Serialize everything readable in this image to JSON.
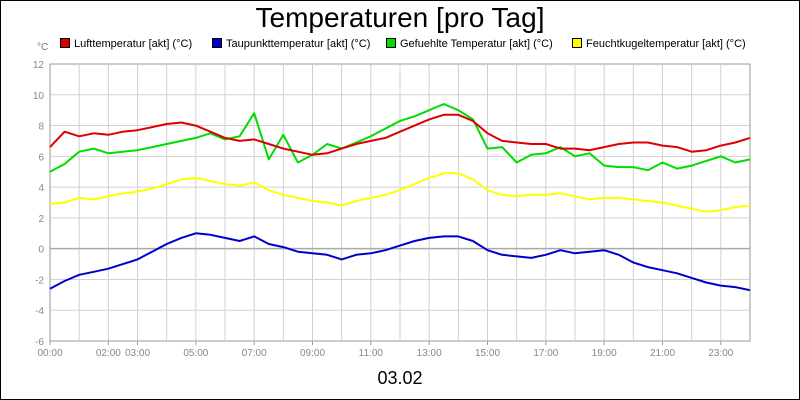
{
  "chart_data": {
    "type": "line",
    "title": "Temperaturen [pro Tag]",
    "unit_label": "°C",
    "footer_label": "03.02",
    "ylim": [
      -6,
      12
    ],
    "y_ticks": [
      12,
      10,
      8,
      6,
      4,
      2,
      0,
      -2,
      -4,
      -6
    ],
    "x_range_hours": [
      0,
      24
    ],
    "x_tick_labels": [
      {
        "hour": 0,
        "label": "00:00"
      },
      {
        "hour": 2,
        "label": "02:00"
      },
      {
        "hour": 3,
        "label": "03:00"
      },
      {
        "hour": 5,
        "label": "05:00"
      },
      {
        "hour": 7,
        "label": "07:00"
      },
      {
        "hour": 9,
        "label": "09:00"
      },
      {
        "hour": 11,
        "label": "11:00"
      },
      {
        "hour": 13,
        "label": "13:00"
      },
      {
        "hour": 15,
        "label": "15:00"
      },
      {
        "hour": 17,
        "label": "17:00"
      },
      {
        "hour": 19,
        "label": "19:00"
      },
      {
        "hour": 21,
        "label": "21:00"
      },
      {
        "hour": 23,
        "label": "23:00"
      }
    ],
    "grid": true,
    "series": [
      {
        "name": "Lufttemperatur [akt] (°C)",
        "color": "#dd0000",
        "points": [
          [
            0,
            6.6
          ],
          [
            0.5,
            7.6
          ],
          [
            1,
            7.3
          ],
          [
            1.5,
            7.5
          ],
          [
            2,
            7.4
          ],
          [
            2.5,
            7.6
          ],
          [
            3,
            7.7
          ],
          [
            3.5,
            7.9
          ],
          [
            4,
            8.1
          ],
          [
            4.5,
            8.2
          ],
          [
            5,
            8.0
          ],
          [
            5.5,
            7.6
          ],
          [
            6,
            7.2
          ],
          [
            6.5,
            7.0
          ],
          [
            7,
            7.1
          ],
          [
            7.5,
            6.8
          ],
          [
            8,
            6.5
          ],
          [
            8.5,
            6.3
          ],
          [
            9,
            6.1
          ],
          [
            9.5,
            6.2
          ],
          [
            10,
            6.5
          ],
          [
            10.5,
            6.8
          ],
          [
            11,
            7.0
          ],
          [
            11.5,
            7.2
          ],
          [
            12,
            7.6
          ],
          [
            12.5,
            8.0
          ],
          [
            13,
            8.4
          ],
          [
            13.5,
            8.7
          ],
          [
            14,
            8.7
          ],
          [
            14.5,
            8.3
          ],
          [
            15,
            7.5
          ],
          [
            15.5,
            7.0
          ],
          [
            16,
            6.9
          ],
          [
            16.5,
            6.8
          ],
          [
            17,
            6.8
          ],
          [
            17.5,
            6.5
          ],
          [
            18,
            6.5
          ],
          [
            18.5,
            6.4
          ],
          [
            19,
            6.6
          ],
          [
            19.5,
            6.8
          ],
          [
            20,
            6.9
          ],
          [
            20.5,
            6.9
          ],
          [
            21,
            6.7
          ],
          [
            21.5,
            6.6
          ],
          [
            22,
            6.3
          ],
          [
            22.5,
            6.4
          ],
          [
            23,
            6.7
          ],
          [
            23.5,
            6.9
          ],
          [
            24,
            7.2
          ]
        ]
      },
      {
        "name": "Taupunkttemperatur [akt] (°C)",
        "color": "#0000cc",
        "points": [
          [
            0,
            -2.6
          ],
          [
            0.5,
            -2.1
          ],
          [
            1,
            -1.7
          ],
          [
            1.5,
            -1.5
          ],
          [
            2,
            -1.3
          ],
          [
            2.5,
            -1.0
          ],
          [
            3,
            -0.7
          ],
          [
            3.5,
            -0.2
          ],
          [
            4,
            0.3
          ],
          [
            4.5,
            0.7
          ],
          [
            5,
            1.0
          ],
          [
            5.5,
            0.9
          ],
          [
            6,
            0.7
          ],
          [
            6.5,
            0.5
          ],
          [
            7,
            0.8
          ],
          [
            7.5,
            0.3
          ],
          [
            8,
            0.1
          ],
          [
            8.5,
            -0.2
          ],
          [
            9,
            -0.3
          ],
          [
            9.5,
            -0.4
          ],
          [
            10,
            -0.7
          ],
          [
            10.5,
            -0.4
          ],
          [
            11,
            -0.3
          ],
          [
            11.5,
            -0.1
          ],
          [
            12,
            0.2
          ],
          [
            12.5,
            0.5
          ],
          [
            13,
            0.7
          ],
          [
            13.5,
            0.8
          ],
          [
            14,
            0.8
          ],
          [
            14.5,
            0.5
          ],
          [
            15,
            -0.1
          ],
          [
            15.5,
            -0.4
          ],
          [
            16,
            -0.5
          ],
          [
            16.5,
            -0.6
          ],
          [
            17,
            -0.4
          ],
          [
            17.5,
            -0.1
          ],
          [
            18,
            -0.3
          ],
          [
            18.5,
            -0.2
          ],
          [
            19,
            -0.1
          ],
          [
            19.5,
            -0.4
          ],
          [
            20,
            -0.9
          ],
          [
            20.5,
            -1.2
          ],
          [
            21,
            -1.4
          ],
          [
            21.5,
            -1.6
          ],
          [
            22,
            -1.9
          ],
          [
            22.5,
            -2.2
          ],
          [
            23,
            -2.4
          ],
          [
            23.5,
            -2.5
          ],
          [
            24,
            -2.7
          ]
        ]
      },
      {
        "name": "Gefuehlte Temperatur [akt] (°C)",
        "color": "#00dd00",
        "points": [
          [
            0,
            5.0
          ],
          [
            0.5,
            5.5
          ],
          [
            1,
            6.3
          ],
          [
            1.5,
            6.5
          ],
          [
            2,
            6.2
          ],
          [
            2.5,
            6.3
          ],
          [
            3,
            6.4
          ],
          [
            3.5,
            6.6
          ],
          [
            4,
            6.8
          ],
          [
            4.5,
            7.0
          ],
          [
            5,
            7.2
          ],
          [
            5.5,
            7.5
          ],
          [
            6,
            7.1
          ],
          [
            6.5,
            7.3
          ],
          [
            7,
            8.8
          ],
          [
            7.5,
            5.8
          ],
          [
            8,
            7.4
          ],
          [
            8.5,
            5.6
          ],
          [
            9,
            6.1
          ],
          [
            9.5,
            6.8
          ],
          [
            10,
            6.5
          ],
          [
            10.5,
            6.9
          ],
          [
            11,
            7.3
          ],
          [
            11.5,
            7.8
          ],
          [
            12,
            8.3
          ],
          [
            12.5,
            8.6
          ],
          [
            13,
            9.0
          ],
          [
            13.5,
            9.4
          ],
          [
            14,
            9.0
          ],
          [
            14.5,
            8.4
          ],
          [
            15,
            6.5
          ],
          [
            15.5,
            6.6
          ],
          [
            16,
            5.6
          ],
          [
            16.5,
            6.1
          ],
          [
            17,
            6.2
          ],
          [
            17.5,
            6.6
          ],
          [
            18,
            6.0
          ],
          [
            18.5,
            6.2
          ],
          [
            19,
            5.4
          ],
          [
            19.5,
            5.3
          ],
          [
            20,
            5.3
          ],
          [
            20.5,
            5.1
          ],
          [
            21,
            5.6
          ],
          [
            21.5,
            5.2
          ],
          [
            22,
            5.4
          ],
          [
            22.5,
            5.7
          ],
          [
            23,
            6.0
          ],
          [
            23.5,
            5.6
          ],
          [
            24,
            5.8
          ]
        ]
      },
      {
        "name": "Feuchtkugeltemperatur [akt] (°C)",
        "color": "#ffff00",
        "points": [
          [
            0,
            2.9
          ],
          [
            0.5,
            3.0
          ],
          [
            1,
            3.3
          ],
          [
            1.5,
            3.2
          ],
          [
            2,
            3.4
          ],
          [
            2.5,
            3.6
          ],
          [
            3,
            3.7
          ],
          [
            3.5,
            3.9
          ],
          [
            4,
            4.2
          ],
          [
            4.5,
            4.5
          ],
          [
            5,
            4.6
          ],
          [
            5.5,
            4.4
          ],
          [
            6,
            4.2
          ],
          [
            6.5,
            4.1
          ],
          [
            7,
            4.3
          ],
          [
            7.5,
            3.8
          ],
          [
            8,
            3.5
          ],
          [
            8.5,
            3.3
          ],
          [
            9,
            3.1
          ],
          [
            9.5,
            3.0
          ],
          [
            10,
            2.8
          ],
          [
            10.5,
            3.1
          ],
          [
            11,
            3.3
          ],
          [
            11.5,
            3.5
          ],
          [
            12,
            3.8
          ],
          [
            12.5,
            4.2
          ],
          [
            13,
            4.6
          ],
          [
            13.5,
            4.9
          ],
          [
            14,
            4.9
          ],
          [
            14.5,
            4.5
          ],
          [
            15,
            3.8
          ],
          [
            15.5,
            3.5
          ],
          [
            16,
            3.4
          ],
          [
            16.5,
            3.5
          ],
          [
            17,
            3.5
          ],
          [
            17.5,
            3.6
          ],
          [
            18,
            3.4
          ],
          [
            18.5,
            3.2
          ],
          [
            19,
            3.3
          ],
          [
            19.5,
            3.3
          ],
          [
            20,
            3.2
          ],
          [
            20.5,
            3.1
          ],
          [
            21,
            3.0
          ],
          [
            21.5,
            2.8
          ],
          [
            22,
            2.6
          ],
          [
            22.5,
            2.4
          ],
          [
            23,
            2.5
          ],
          [
            23.5,
            2.7
          ],
          [
            24,
            2.8
          ]
        ]
      }
    ]
  }
}
